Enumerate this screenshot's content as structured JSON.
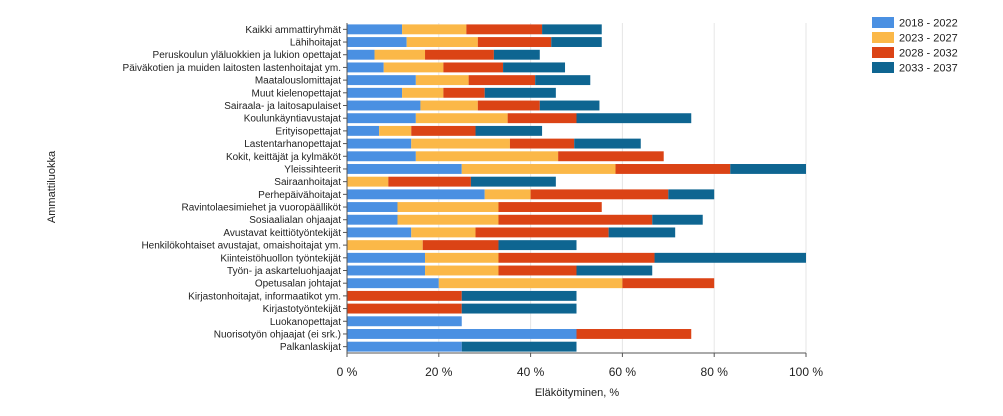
{
  "chart_data": {
    "type": "bar",
    "orientation": "horizontal",
    "stacked": true,
    "xlabel": "Eläköityminen, %",
    "ylabel": "Ammattiluokka",
    "xlim": [
      0,
      100
    ],
    "x_ticks": [
      "0 %",
      "20 %",
      "40 %",
      "60 %",
      "80 %",
      "100 %"
    ],
    "grid": "vertical",
    "legend_position": "top-right",
    "categories": [
      "Kaikki ammattiryhmät",
      "Lähihoitajat",
      "Peruskoulun yläluokkien ja lukion opettajat",
      "Päiväkotien ja muiden laitosten lastenhoitajat ym.",
      "Maatalouslomittajat",
      "Muut kielenopettajat",
      "Sairaala- ja laitosapulaiset",
      "Koulunkäyntiavustajat",
      "Erityisopettajat",
      "Lastentarhanopettajat",
      "Kokit, keittäjät ja kylmäköt",
      "Yleissihteerit",
      "Sairaanhoitajat",
      "Perhepäivähoitajat",
      "Ravintolaesimiehet ja vuoropäälliköt",
      "Sosiaalialan ohjaajat",
      "Avustavat keittiötyöntekijät",
      "Henkilökohtaiset avustajat, omaishoitajat ym.",
      "Kiinteistöhuollon työntekijät",
      "Työn- ja askarteluohjaajat",
      "Opetusalan johtajat",
      "Kirjastonhoitajat, informaatikot ym.",
      "Kirjastotyöntekijät",
      "Luokanopettajat",
      "Nuorisotyön ohjaajat (ei srk.)",
      "Palkanlaskijat"
    ],
    "series": [
      {
        "name": "2018 - 2022",
        "color": "#4a90e2",
        "values": [
          12,
          13,
          6,
          8,
          15,
          12,
          16,
          15,
          7,
          14,
          15,
          25,
          0,
          30,
          11,
          11,
          14,
          0,
          17,
          17,
          20,
          0,
          0,
          25,
          50,
          25
        ]
      },
      {
        "name": "2023 - 2027",
        "color": "#fbb848",
        "values": [
          14,
          15.5,
          11,
          13,
          11.5,
          9,
          12.5,
          20,
          7,
          21.5,
          31,
          33.5,
          9,
          10,
          22,
          22,
          14,
          16.5,
          16,
          16,
          40,
          0,
          0,
          0,
          0,
          0
        ]
      },
      {
        "name": "2028 - 2032",
        "color": "#db4315",
        "values": [
          16.5,
          16,
          15,
          13,
          14.5,
          9,
          13.5,
          15,
          14,
          14,
          23,
          25,
          18,
          30,
          22.5,
          33.5,
          29,
          16.5,
          34,
          17,
          20,
          25,
          25,
          0,
          25,
          0
        ]
      },
      {
        "name": "2033 - 2037",
        "color": "#0e6591",
        "values": [
          13,
          11,
          10,
          13.5,
          12,
          15.5,
          13,
          25,
          14.5,
          14.5,
          0,
          16.5,
          18.5,
          10,
          0,
          11,
          14.5,
          17,
          33,
          16.5,
          0,
          25,
          25,
          0,
          0,
          25
        ]
      }
    ]
  }
}
